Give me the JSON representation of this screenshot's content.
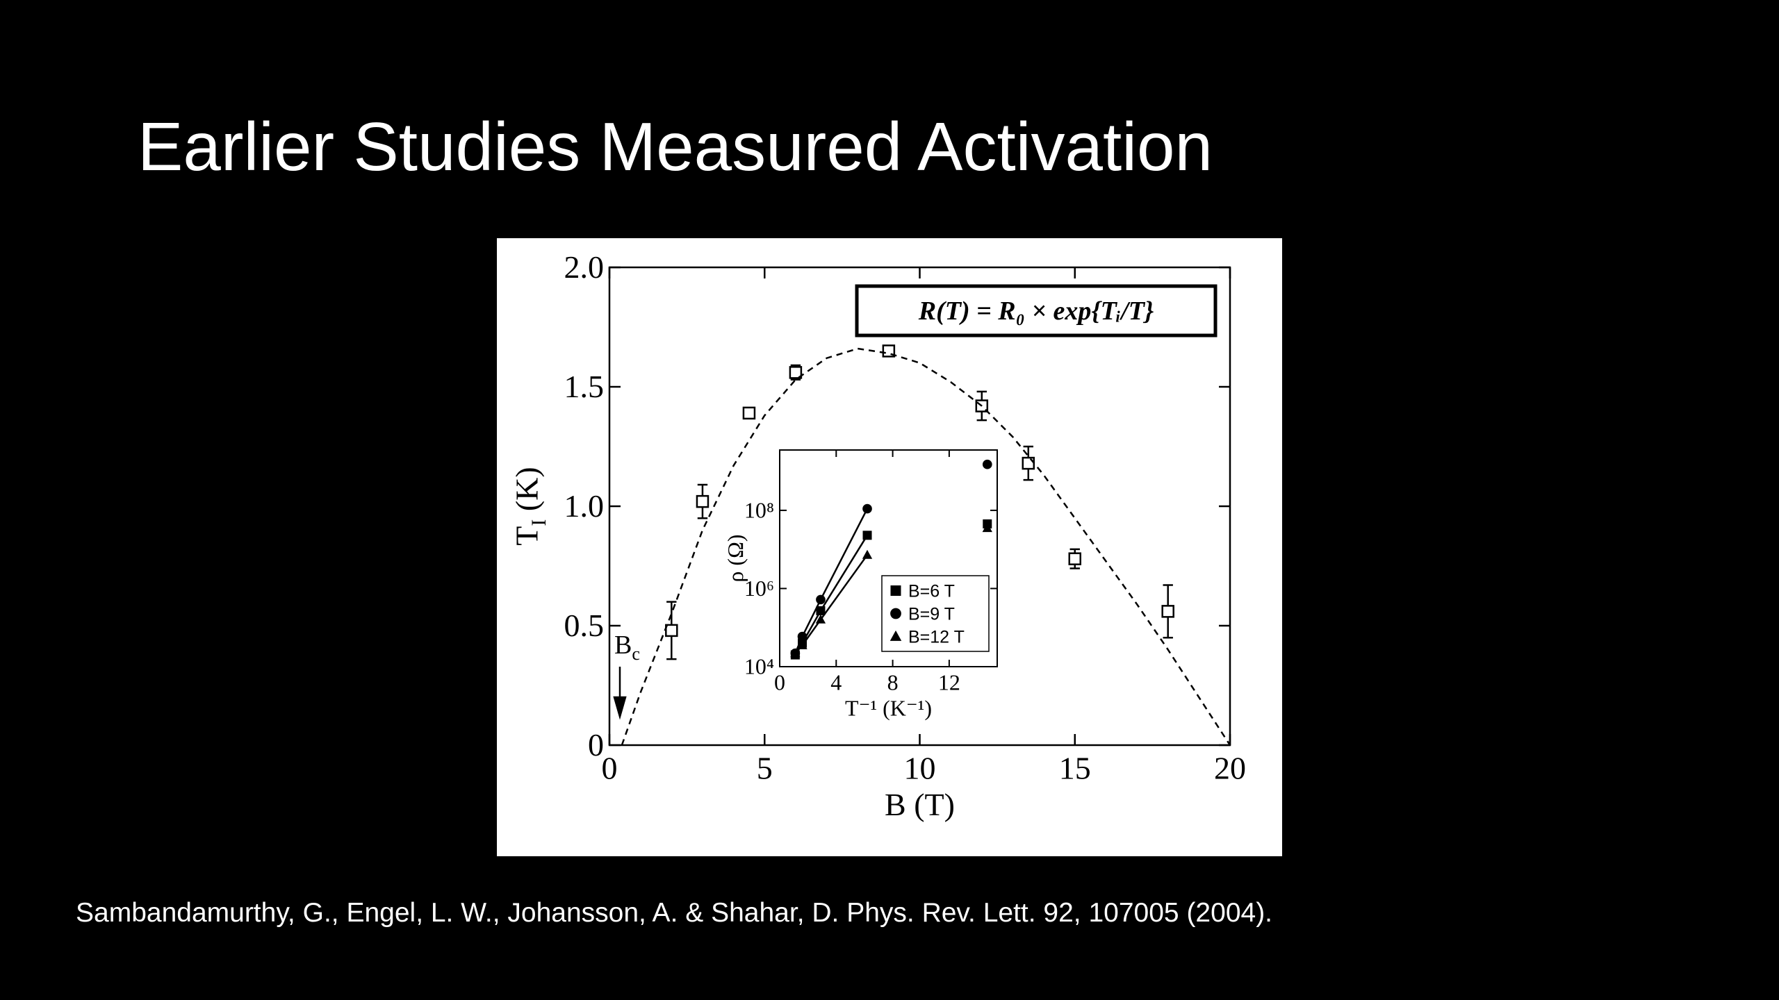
{
  "slide": {
    "title": "Earlier Studies Measured Activation",
    "citation": "Sambandamurthy, G., Engel, L. W., Johansson, A. & Shahar, D. Phys. Rev. Lett. 92, 107005 (2004)."
  },
  "chart_data": [
    {
      "type": "scatter",
      "xlabel": "B (T)",
      "ylabel": {
        "text": "T",
        "subscript": "I",
        "unit": "(K)"
      },
      "annotation": "R(T) = R₀ × exp{Tᵢ/T}",
      "marker_label": {
        "text": "B",
        "subscript": "c"
      },
      "xlim": [
        0,
        20
      ],
      "xticks": [
        0,
        5,
        10,
        15,
        20
      ],
      "ylim": [
        0,
        2
      ],
      "yticks": [
        0,
        0.5,
        {
          "value": 1,
          "label": "1.0"
        },
        1.5,
        {
          "value": 2,
          "label": "2.0"
        }
      ],
      "series": [
        {
          "x": [
            2,
            3,
            4.5,
            6,
            9,
            12,
            13.5,
            15,
            18
          ],
          "values": [
            0.48,
            1.02,
            1.39,
            1.56,
            1.65,
            1.42,
            1.18,
            0.78,
            0.56
          ],
          "errors": [
            0.12,
            0.07,
            0.02,
            0.03,
            0.01,
            0.06,
            0.07,
            0.04,
            0.11
          ],
          "marker": "open-square",
          "color": "#000000"
        },
        {
          "x": [
            0.4,
            1,
            2,
            3,
            4,
            5,
            6,
            7,
            8,
            9,
            10,
            11,
            12,
            13,
            14,
            15,
            16,
            17,
            18,
            19,
            20
          ],
          "values": [
            0,
            0.22,
            0.55,
            0.9,
            1.17,
            1.38,
            1.53,
            1.62,
            1.66,
            1.64,
            1.6,
            1.52,
            1.42,
            1.29,
            1.13,
            0.95,
            0.77,
            0.59,
            0.4,
            0.2,
            0
          ],
          "line_style": "dashed",
          "color": "#000000"
        }
      ]
    },
    {
      "type": "line",
      "xlabel": "T⁻¹ (K⁻¹)",
      "ylabel": "ρ (Ω)",
      "xlim": [
        0,
        15.4
      ],
      "xticks": [
        0,
        4,
        8,
        12
      ],
      "ylim": [
        10000,
        3500000000
      ],
      "log_y": true,
      "yticks": [
        {
          "value": 10000,
          "label": "10⁴"
        },
        {
          "value": 1000000,
          "label": "10⁶"
        },
        {
          "value": 100000000,
          "label": "10⁸"
        }
      ],
      "legend": "lower right",
      "series": [
        {
          "name": "B=6 T",
          "marker": "filled-square",
          "line_style": "solid",
          "color": "#000000",
          "x": [
            1.1,
            1.6,
            2.9,
            6.2,
            null,
            14.7
          ],
          "values": [
            20000,
            40000,
            270000,
            23000000,
            null,
            45000000
          ]
        },
        {
          "name": "B=9 T",
          "marker": "filled-circle",
          "line_style": "solid",
          "color": "#000000",
          "x": [
            1.1,
            1.6,
            2.9,
            6.2,
            null,
            14.7
          ],
          "values": [
            22000,
            59000,
            520000,
            110000000,
            null,
            1500000000
          ]
        },
        {
          "name": "B=12 T",
          "marker": "filled-triangle",
          "line_style": "solid",
          "color": "#000000",
          "x": [
            1.1,
            1.6,
            2.9,
            6.2,
            null,
            14.7
          ],
          "values": [
            22000,
            35000,
            160000,
            7200000,
            null,
            35000000
          ]
        }
      ]
    }
  ]
}
